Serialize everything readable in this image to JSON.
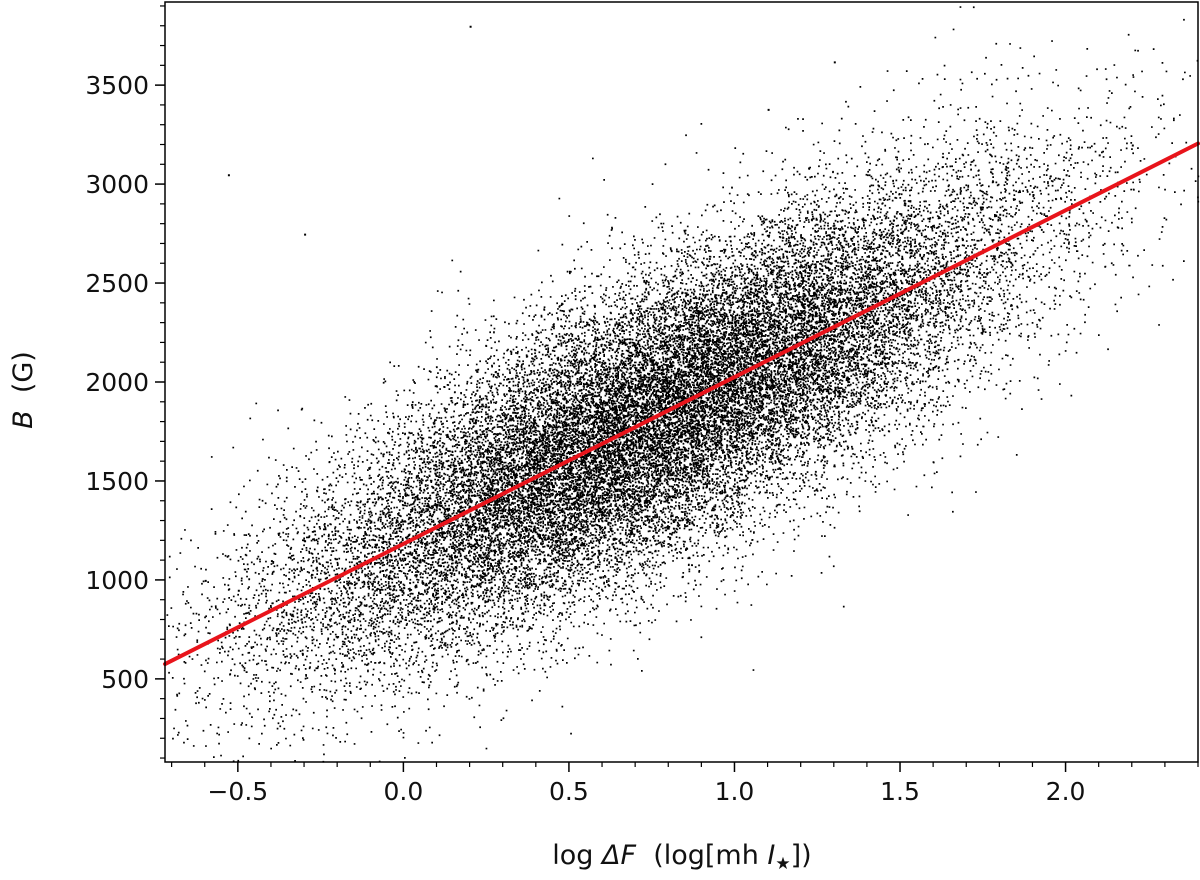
{
  "chart_data": {
    "type": "scatter",
    "title": "",
    "xlabel": {
      "prefix": "log ",
      "symbol": "ΔF",
      "units_open": "  (log[mh ",
      "units_symbol": "I",
      "units_sub": "★",
      "units_close": "])"
    },
    "ylabel": {
      "symbol": "B",
      "units": "  (G)"
    },
    "xlim": [
      -0.72,
      2.4
    ],
    "ylim": [
      80,
      3920
    ],
    "x_ticks": [
      -0.5,
      0.0,
      0.5,
      1.0,
      1.5,
      2.0
    ],
    "x_tick_labels": [
      "−0.5",
      "0.0",
      "0.5",
      "1.0",
      "1.5",
      "2.0"
    ],
    "y_ticks": [
      500,
      1000,
      1500,
      2000,
      2500,
      3000,
      3500
    ],
    "y_tick_labels": [
      "500",
      "1000",
      "1500",
      "2000",
      "2500",
      "3000",
      "3500"
    ],
    "grid": false,
    "series": [
      {
        "kind": "points",
        "color": "#000000",
        "approx_count": 30000,
        "note_density": "dense cloud centred along the fit line; spread of about ±350 G",
        "representative_points": [
          [
            -0.6,
            1000
          ],
          [
            -0.5,
            950
          ],
          [
            -0.4,
            1100
          ],
          [
            -0.3,
            1200
          ],
          [
            -0.2,
            1250
          ],
          [
            -0.1,
            1300
          ],
          [
            0.0,
            1300
          ],
          [
            0.1,
            1380
          ],
          [
            0.2,
            1400
          ],
          [
            0.3,
            1450
          ],
          [
            0.4,
            1500
          ],
          [
            0.5,
            1580
          ],
          [
            0.6,
            1650
          ],
          [
            0.7,
            1700
          ],
          [
            0.8,
            1800
          ],
          [
            0.9,
            1900
          ],
          [
            1.0,
            2000
          ],
          [
            1.1,
            2100
          ],
          [
            1.2,
            2200
          ],
          [
            1.3,
            2300
          ],
          [
            1.4,
            2450
          ],
          [
            1.5,
            2550
          ],
          [
            1.6,
            2650
          ],
          [
            1.7,
            2750
          ],
          [
            1.8,
            2850
          ],
          [
            1.9,
            2950
          ],
          [
            2.0,
            3050
          ],
          [
            2.1,
            3150
          ],
          [
            2.2,
            3200
          ],
          [
            -0.53,
            3050
          ],
          [
            -0.3,
            2750
          ],
          [
            0.2,
            3800
          ],
          [
            1.3,
            3620
          ],
          [
            1.1,
            3380
          ],
          [
            1.9,
            2650
          ]
        ]
      },
      {
        "kind": "fit_line",
        "color": "#e8141b",
        "x": [
          -0.72,
          2.4
        ],
        "y": [
          575,
          3205
        ]
      }
    ],
    "cloud_model": {
      "x_mean": 0.75,
      "x_sd": 0.55,
      "x_min": -0.72,
      "x_max": 2.4,
      "intercept": 1181,
      "slope": 843,
      "scatter_sd": 360,
      "point_count": 30000
    }
  }
}
